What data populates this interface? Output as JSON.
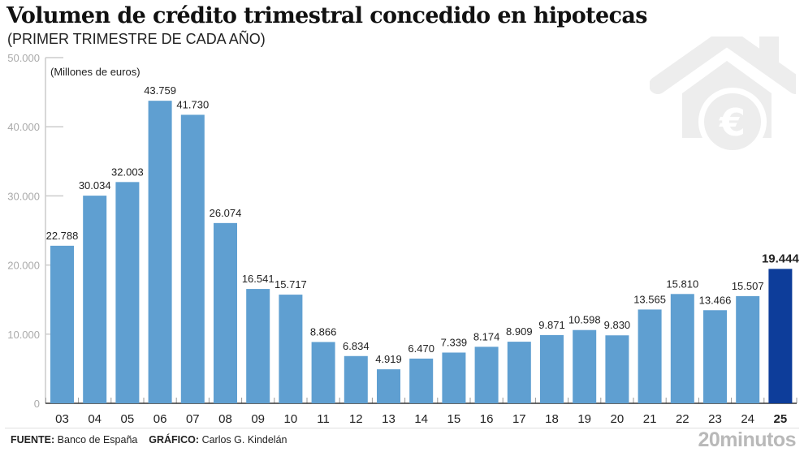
{
  "header": {
    "title": "Volumen de crédito trimestral concedido en hipotecas",
    "subtitle": "(PRIMER TRIMESTRE DE CADA AÑO)"
  },
  "chart_data": {
    "type": "bar",
    "title": "Volumen de crédito trimestral concedido en hipotecas",
    "subtitle": "(PRIMER TRIMESTRE DE CADA AÑO)",
    "unit_label": "(Millones de euros)",
    "xlabel": "",
    "ylabel": "Millones de euros",
    "ylim": [
      0,
      50000
    ],
    "yticks": [
      0,
      10000,
      20000,
      30000,
      40000,
      50000
    ],
    "ytick_labels": [
      "0",
      "10.000",
      "20.000",
      "30.000",
      "40.000",
      "50.000"
    ],
    "grid": false,
    "categories": [
      "03",
      "04",
      "05",
      "06",
      "07",
      "08",
      "09",
      "10",
      "11",
      "12",
      "13",
      "14",
      "15",
      "16",
      "17",
      "18",
      "19",
      "20",
      "21",
      "22",
      "23",
      "24",
      "25"
    ],
    "values": [
      22788,
      30034,
      32003,
      43759,
      41730,
      26074,
      16541,
      15717,
      8866,
      6834,
      4919,
      6470,
      7339,
      8174,
      8909,
      9871,
      10598,
      9830,
      13565,
      15810,
      13466,
      15507,
      19444
    ],
    "value_labels": [
      "22.788",
      "30.034",
      "32.003",
      "43.759",
      "41.730",
      "26.074",
      "16.541",
      "15.717",
      "8.866",
      "6.834",
      "4.919",
      "6.470",
      "7.339",
      "8.174",
      "8.909",
      "9.871",
      "10.598",
      "9.830",
      "13.565",
      "15.810",
      "13.466",
      "15.507",
      "19.444"
    ],
    "highlight_index": 22,
    "colors": {
      "bar": "#5f9fd1",
      "highlight": "#0d3d9a",
      "axis": "#333333",
      "tick_label": "#aaaaaa"
    }
  },
  "footer": {
    "source_label": "FUENTE:",
    "source_value": "Banco de España",
    "graphic_label": "GRÁFICO:",
    "graphic_value": "Carlos G. Kindelán",
    "brand": "20minutos"
  },
  "decoration": {
    "icon": "house-euro-icon"
  }
}
